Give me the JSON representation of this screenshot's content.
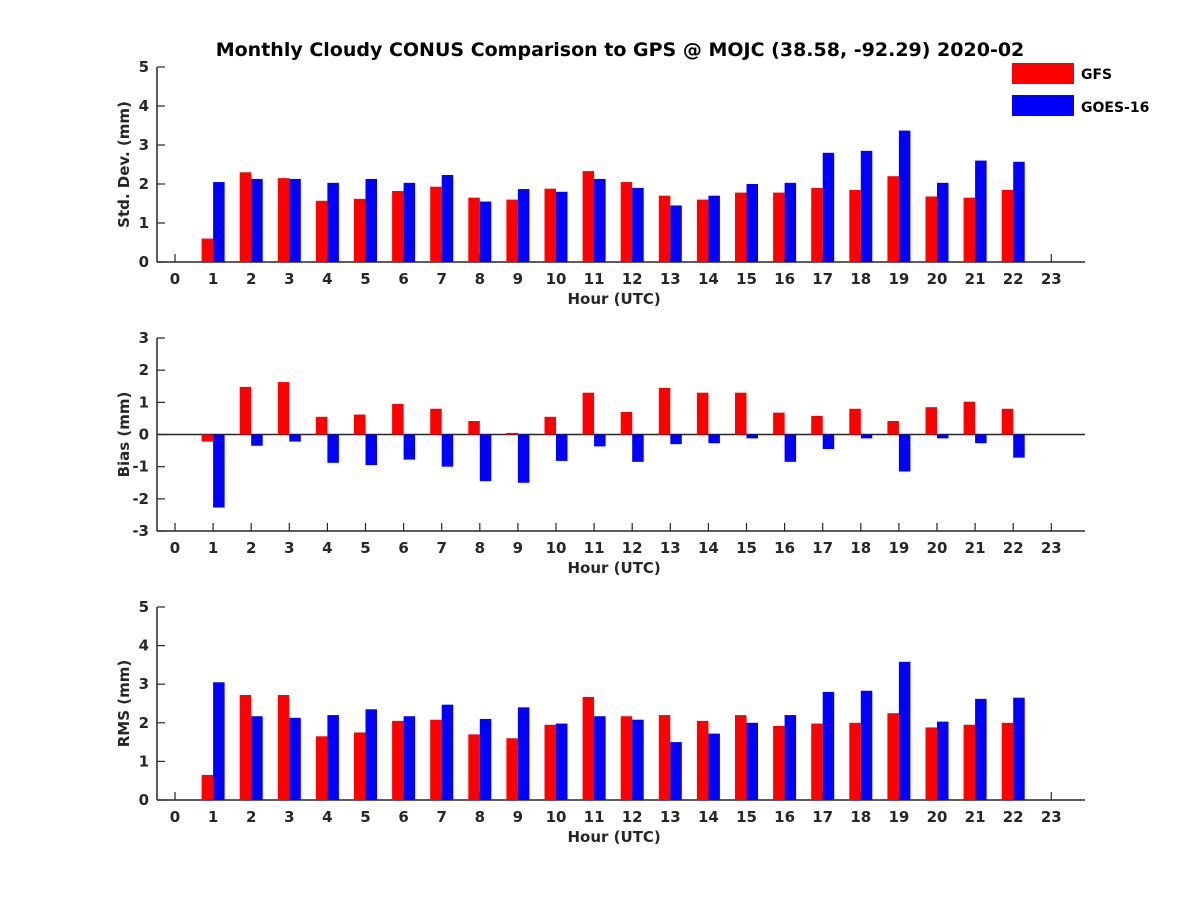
{
  "title": "Monthly Cloudy CONUS Comparison to GPS @ MOJC (38.58, -92.29) 2020-02",
  "legend": [
    {
      "name": "GFS",
      "color": "#ff0000"
    },
    {
      "name": "GOES-16",
      "color": "#0000ff"
    }
  ],
  "chart_data": [
    {
      "type": "bar",
      "id": "std",
      "xlabel": "Hour (UTC)",
      "ylabel": "Std. Dev. (mm)",
      "categories": [
        0,
        1,
        2,
        3,
        4,
        5,
        6,
        7,
        8,
        9,
        10,
        11,
        12,
        13,
        14,
        15,
        16,
        17,
        18,
        19,
        20,
        21,
        22,
        23
      ],
      "ylim": [
        0,
        5
      ],
      "yticks": [
        0,
        1,
        2,
        3,
        4,
        5
      ],
      "series": [
        {
          "name": "GFS",
          "color": "#ff0000",
          "values": [
            null,
            0.6,
            2.3,
            2.15,
            1.57,
            1.62,
            1.82,
            1.93,
            1.65,
            1.6,
            1.88,
            2.33,
            2.05,
            1.7,
            1.6,
            1.78,
            1.78,
            1.9,
            1.85,
            2.2,
            1.68,
            1.65,
            1.85,
            null
          ]
        },
        {
          "name": "GOES-16",
          "color": "#0000ff",
          "values": [
            null,
            2.05,
            2.13,
            2.13,
            2.03,
            2.13,
            2.03,
            2.23,
            1.55,
            1.87,
            1.8,
            2.13,
            1.9,
            1.45,
            1.7,
            2.0,
            2.03,
            2.8,
            2.85,
            3.37,
            2.03,
            2.6,
            2.57,
            null
          ]
        }
      ]
    },
    {
      "type": "bar",
      "id": "bias",
      "xlabel": "Hour (UTC)",
      "ylabel": "Bias (mm)",
      "categories": [
        0,
        1,
        2,
        3,
        4,
        5,
        6,
        7,
        8,
        9,
        10,
        11,
        12,
        13,
        14,
        15,
        16,
        17,
        18,
        19,
        20,
        21,
        22,
        23
      ],
      "ylim": [
        -3,
        3
      ],
      "yticks": [
        -3,
        -2,
        -1,
        0,
        1,
        2,
        3
      ],
      "series": [
        {
          "name": "GFS",
          "color": "#ff0000",
          "values": [
            null,
            -0.22,
            1.48,
            1.63,
            0.55,
            0.62,
            0.95,
            0.8,
            0.42,
            0.05,
            0.55,
            1.3,
            0.7,
            1.45,
            1.3,
            1.3,
            0.68,
            0.58,
            0.8,
            0.42,
            0.85,
            1.02,
            0.8,
            null
          ]
        },
        {
          "name": "GOES-16",
          "color": "#0000ff",
          "values": [
            null,
            -2.27,
            -0.35,
            -0.22,
            -0.88,
            -0.95,
            -0.78,
            -1.0,
            -1.45,
            -1.5,
            -0.82,
            -0.37,
            -0.85,
            -0.3,
            -0.27,
            -0.12,
            -0.85,
            -0.45,
            -0.12,
            -1.15,
            -0.12,
            -0.27,
            -0.72,
            null
          ]
        }
      ]
    },
    {
      "type": "bar",
      "id": "rms",
      "xlabel": "Hour (UTC)",
      "ylabel": "RMS (mm)",
      "categories": [
        0,
        1,
        2,
        3,
        4,
        5,
        6,
        7,
        8,
        9,
        10,
        11,
        12,
        13,
        14,
        15,
        16,
        17,
        18,
        19,
        20,
        21,
        22,
        23
      ],
      "ylim": [
        0,
        5
      ],
      "yticks": [
        0,
        1,
        2,
        3,
        4,
        5
      ],
      "series": [
        {
          "name": "GFS",
          "color": "#ff0000",
          "values": [
            null,
            0.65,
            2.72,
            2.72,
            1.65,
            1.75,
            2.05,
            2.08,
            1.7,
            1.6,
            1.95,
            2.67,
            2.17,
            2.2,
            2.05,
            2.2,
            1.92,
            1.98,
            2.0,
            2.25,
            1.88,
            1.95,
            2.0,
            null
          ]
        },
        {
          "name": "GOES-16",
          "color": "#0000ff",
          "values": [
            null,
            3.05,
            2.17,
            2.13,
            2.2,
            2.35,
            2.17,
            2.47,
            2.1,
            2.4,
            1.98,
            2.17,
            2.08,
            1.5,
            1.72,
            2.0,
            2.2,
            2.8,
            2.83,
            3.58,
            2.03,
            2.62,
            2.65,
            null
          ]
        }
      ]
    }
  ]
}
